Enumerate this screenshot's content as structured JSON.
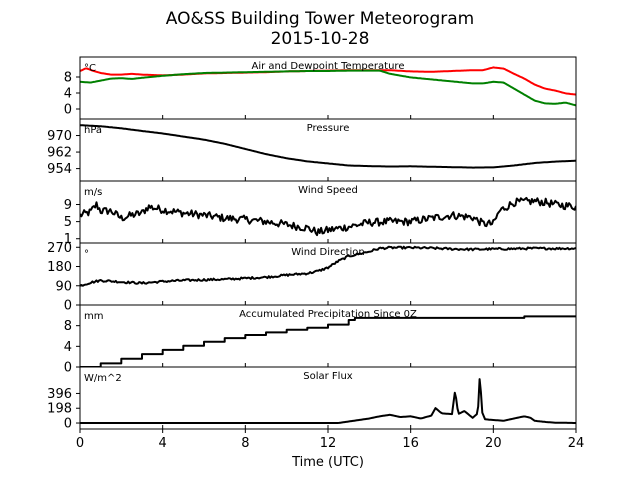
{
  "title": "AO&SS Building Tower Meteorogram",
  "subtitle": "2015-10-28",
  "chart_data": {
    "type": "line",
    "xlabel": "Time (UTC)",
    "xlim": [
      0,
      24
    ],
    "xticks": [
      0,
      4,
      8,
      12,
      16,
      20,
      24
    ],
    "panels": [
      {
        "key": "temp",
        "title": "Air and Dewpoint Temperature",
        "unit": "°C",
        "ylim": [
          -2.5,
          13
        ],
        "yticks": [
          0,
          4,
          8
        ],
        "series": [
          {
            "name": "Air Temperature",
            "color": "#ff0000",
            "x": [
              0,
              0.3,
              0.6,
              1,
              1.5,
              2,
              2.5,
              3,
              4,
              5,
              6,
              7,
              8,
              9,
              10,
              11,
              12,
              13,
              14,
              15,
              16,
              17,
              18,
              19,
              19.5,
              20,
              20.5,
              21,
              21.5,
              22,
              22.5,
              23,
              23.5,
              24
            ],
            "y": [
              9.5,
              10.2,
              9.6,
              9.0,
              8.6,
              8.6,
              8.8,
              8.6,
              8.4,
              8.6,
              8.9,
              9.0,
              9.1,
              9.2,
              9.4,
              9.5,
              9.6,
              9.7,
              9.7,
              9.7,
              9.4,
              9.3,
              9.5,
              9.7,
              9.7,
              10.4,
              10.1,
              8.8,
              7.6,
              6.1,
              5.1,
              4.6,
              3.9,
              3.6
            ]
          },
          {
            "name": "Dewpoint Temperature",
            "color": "#008000",
            "x": [
              0,
              0.5,
              1,
              1.5,
              2,
              2.5,
              3,
              4,
              5,
              6,
              7,
              8,
              9,
              10,
              11,
              12,
              13,
              14,
              14.5,
              15,
              16,
              17,
              18,
              19,
              19.5,
              20,
              20.5,
              21,
              21.5,
              22,
              22.5,
              23,
              23.5,
              24
            ],
            "y": [
              6.8,
              6.6,
              7.1,
              7.6,
              7.7,
              7.5,
              7.8,
              8.3,
              8.7,
              9.0,
              9.1,
              9.2,
              9.3,
              9.4,
              9.5,
              9.5,
              9.6,
              9.6,
              9.6,
              8.8,
              7.9,
              7.4,
              6.9,
              6.4,
              6.4,
              6.8,
              6.6,
              5.1,
              3.6,
              2.1,
              1.4,
              1.3,
              1.6,
              0.9
            ]
          }
        ]
      },
      {
        "key": "pres",
        "title": "Pressure",
        "unit": "hPa",
        "ylim": [
          948,
          978
        ],
        "yticks": [
          954,
          962,
          970
        ],
        "series": [
          {
            "name": "Pressure",
            "color": "#000000",
            "x": [
              0,
              1,
              2,
              3,
              4,
              5,
              6,
              7,
              8,
              9,
              10,
              11,
              12,
              13,
              14,
              15,
              16,
              17,
              18,
              19,
              20,
              21,
              22,
              23,
              24
            ],
            "y": [
              975,
              974.5,
              973.5,
              972.2,
              971,
              969.5,
              968,
              966,
              963.5,
              961,
              959,
              957.5,
              956.5,
              955.5,
              955.2,
              955,
              955.1,
              954.9,
              954.7,
              954.5,
              954.6,
              955.5,
              956.7,
              957.4,
              957.8
            ]
          }
        ]
      },
      {
        "key": "wspd",
        "title": "Wind Speed",
        "unit": "m/s",
        "ylim": [
          0,
          14.5
        ],
        "yticks": [
          1,
          5,
          9
        ],
        "series": [
          {
            "name": "Wind Speed",
            "color": "#000000",
            "noise": 0.9,
            "x": [
              0,
              0.5,
              0.8,
              1,
              1.5,
              2,
              2.5,
              3,
              3.3,
              4,
              5,
              6,
              7,
              8,
              9,
              10,
              11,
              11.5,
              12,
              13,
              14,
              15,
              16,
              17,
              18,
              19,
              19.5,
              20,
              20.3,
              21,
              22,
              22.5,
              23,
              24
            ],
            "y": [
              6.5,
              7.2,
              9,
              7.5,
              7.5,
              5.8,
              6.5,
              7,
              8.5,
              7.8,
              7,
              6.5,
              5.8,
              5.5,
              5,
              4.3,
              3.5,
              2.5,
              3,
              3.8,
              4.8,
              5,
              5,
              5.8,
              6.5,
              6,
              4.5,
              4.5,
              7.5,
              9.5,
              9.8,
              9.5,
              9,
              8.5
            ]
          }
        ]
      },
      {
        "key": "wdir",
        "title": "Wind Direction",
        "unit": "°",
        "ylim": [
          0,
          290
        ],
        "yticks": [
          0,
          90,
          180,
          270
        ],
        "series": [
          {
            "name": "Wind Direction",
            "color": "#000000",
            "noise": 5,
            "x": [
              0,
              0.5,
              1,
              2,
              3,
              4,
              5,
              6,
              7,
              8,
              9,
              10,
              11,
              11.5,
              12,
              12.5,
              13,
              14,
              14.5,
              15,
              16,
              17,
              18,
              19,
              20,
              21,
              22,
              23,
              24
            ],
            "y": [
              90,
              105,
              115,
              108,
              102,
              110,
              115,
              118,
              120,
              125,
              130,
              140,
              148,
              158,
              175,
              205,
              228,
              250,
              265,
              268,
              268,
              266,
              262,
              260,
              262,
              263,
              265,
              264,
              265
            ]
          }
        ]
      },
      {
        "key": "prcp",
        "title": "Accumulated Precipitation Since 0Z",
        "unit": "mm",
        "ylim": [
          0,
          12
        ],
        "yticks": [
          0,
          4,
          8
        ],
        "series": [
          {
            "name": "Accumulated Precipitation",
            "color": "#000000",
            "stairs": true,
            "x": [
              0,
              1,
              2,
              3,
              4,
              5,
              6,
              7,
              8,
              9,
              10,
              11,
              12,
              13,
              13.3,
              21.5,
              24
            ],
            "y": [
              0,
              0.7,
              1.6,
              2.5,
              3.3,
              4.1,
              4.9,
              5.6,
              6.2,
              6.7,
              7.2,
              7.6,
              8.2,
              9.1,
              9.5,
              9.8,
              9.8
            ]
          }
        ]
      },
      {
        "key": "solar",
        "title": "Solar Flux",
        "unit": "W/m^2",
        "ylim": [
          -80,
          750
        ],
        "yticks": [
          0,
          198,
          396
        ],
        "series": [
          {
            "name": "Solar Flux",
            "color": "#000000",
            "x": [
              0,
              12.5,
              13,
              14,
              14.5,
              15,
              15.5,
              16,
              16.5,
              17,
              17.2,
              17.5,
              18,
              18.15,
              18.3,
              18.6,
              19,
              19.25,
              19.35,
              19.45,
              19.6,
              20,
              20.5,
              21,
              21.5,
              21.8,
              22,
              22.5,
              23,
              24
            ],
            "y": [
              0,
              0,
              20,
              60,
              90,
              110,
              80,
              90,
              60,
              100,
              200,
              130,
              120,
              440,
              120,
              160,
              70,
              130,
              680,
              150,
              50,
              40,
              30,
              60,
              90,
              70,
              30,
              15,
              5,
              0
            ]
          }
        ]
      }
    ]
  }
}
